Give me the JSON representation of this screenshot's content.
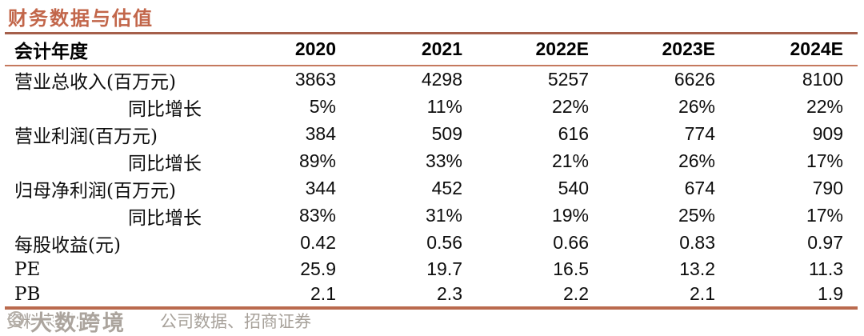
{
  "title": "财务数据与估值",
  "colors": {
    "title_accent": "#c2664a",
    "rule_top": "#a55f4b",
    "rule_header_bottom": "#c5795e",
    "rule_table_bottom": "#ba6a4e",
    "source_text_gray": "#a7a19a"
  },
  "table": {
    "header": [
      "会计年度",
      "2020",
      "2021",
      "2022E",
      "2023E",
      "2024E"
    ],
    "rows": [
      {
        "label": "营业总收入(百万元)",
        "indent": false,
        "values": [
          "3863",
          "4298",
          "5257",
          "6626",
          "8100"
        ]
      },
      {
        "label": "同比增长",
        "indent": true,
        "values": [
          "5%",
          "11%",
          "22%",
          "26%",
          "22%"
        ]
      },
      {
        "label": "营业利润(百万元)",
        "indent": false,
        "values": [
          "384",
          "509",
          "616",
          "774",
          "909"
        ]
      },
      {
        "label": "同比增长",
        "indent": true,
        "values": [
          "89%",
          "33%",
          "21%",
          "26%",
          "17%"
        ]
      },
      {
        "label": "归母净利润(百万元)",
        "indent": false,
        "values": [
          "344",
          "452",
          "540",
          "674",
          "790"
        ]
      },
      {
        "label": "同比增长",
        "indent": true,
        "values": [
          "83%",
          "31%",
          "19%",
          "25%",
          "17%"
        ]
      },
      {
        "label": "每股收益(元)",
        "indent": false,
        "values": [
          "0.42",
          "0.56",
          "0.66",
          "0.83",
          "0.97"
        ]
      },
      {
        "label": "PE",
        "indent": false,
        "values": [
          "25.9",
          "19.7",
          "16.5",
          "13.2",
          "11.3"
        ]
      },
      {
        "label": "PB",
        "indent": false,
        "values": [
          "2.1",
          "2.3",
          "2.2",
          "2.1",
          "1.9"
        ]
      }
    ]
  },
  "footer": {
    "source_label": "资料来源：",
    "source_text": "公司数据、招商证券",
    "watermark_text": "大数跨境"
  }
}
